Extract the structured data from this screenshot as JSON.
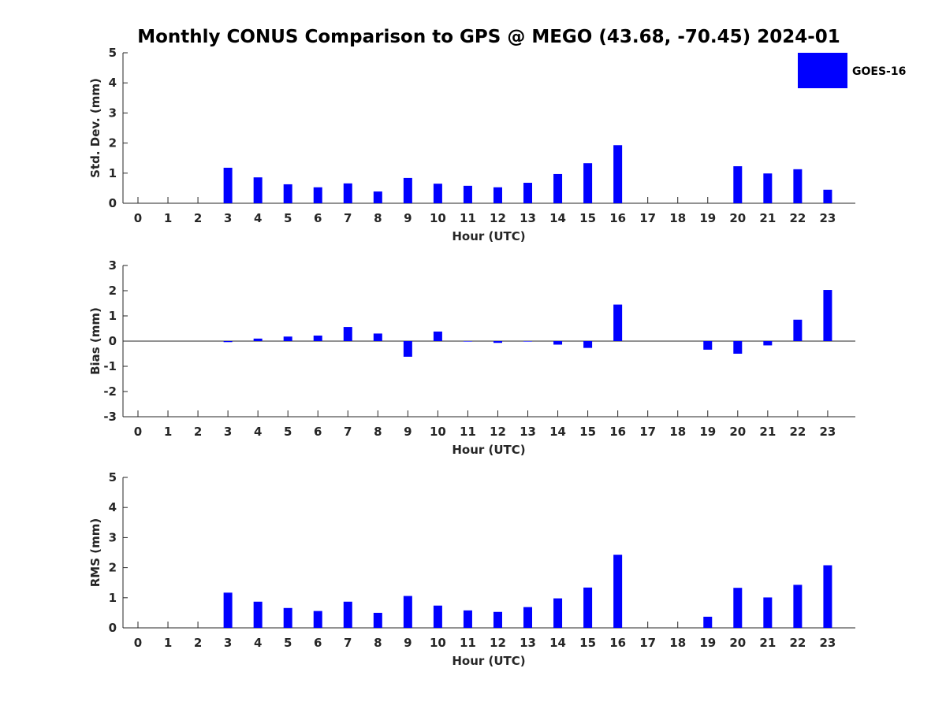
{
  "chart_data": [
    {
      "type": "bar",
      "title": "Monthly CONUS Comparison to GPS @ MEGO (43.68, -70.45) 2024-01",
      "xlabel": "Hour (UTC)",
      "ylabel": "Std. Dev. (mm)",
      "ylim": [
        0,
        5
      ],
      "yticks": [
        0,
        1,
        2,
        3,
        4,
        5
      ],
      "categories": [
        "0",
        "1",
        "2",
        "3",
        "4",
        "5",
        "6",
        "7",
        "8",
        "9",
        "10",
        "11",
        "12",
        "13",
        "14",
        "15",
        "16",
        "17",
        "18",
        "19",
        "20",
        "21",
        "22",
        "23"
      ],
      "series": [
        {
          "name": "GOES-16",
          "color": "#0000ff",
          "values": [
            null,
            null,
            null,
            1.18,
            0.86,
            0.63,
            0.53,
            0.66,
            0.39,
            0.84,
            0.65,
            0.58,
            0.53,
            0.68,
            0.97,
            1.33,
            1.93,
            null,
            null,
            null,
            1.23,
            0.99,
            1.13,
            0.45
          ]
        }
      ],
      "legend": {
        "position": "top-right",
        "entries": [
          "GOES-16"
        ]
      },
      "grid": false
    },
    {
      "type": "bar",
      "xlabel": "Hour (UTC)",
      "ylabel": "Bias (mm)",
      "ylim": [
        -3,
        3
      ],
      "yticks": [
        -3,
        -2,
        -1,
        0,
        1,
        2,
        3
      ],
      "zero_line": true,
      "categories": [
        "0",
        "1",
        "2",
        "3",
        "4",
        "5",
        "6",
        "7",
        "8",
        "9",
        "10",
        "11",
        "12",
        "13",
        "14",
        "15",
        "16",
        "17",
        "18",
        "19",
        "20",
        "21",
        "22",
        "23"
      ],
      "series": [
        {
          "name": "GOES-16",
          "color": "#0000ff",
          "values": [
            null,
            null,
            null,
            -0.04,
            0.1,
            0.18,
            0.22,
            0.56,
            0.3,
            -0.62,
            0.38,
            0.0,
            -0.07,
            0.0,
            -0.14,
            -0.27,
            1.45,
            null,
            null,
            -0.34,
            -0.5,
            -0.17,
            0.85,
            2.03
          ]
        }
      ],
      "grid": false
    },
    {
      "type": "bar",
      "xlabel": "Hour (UTC)",
      "ylabel": "RMS (mm)",
      "ylim": [
        0,
        5
      ],
      "yticks": [
        0,
        1,
        2,
        3,
        4,
        5
      ],
      "categories": [
        "0",
        "1",
        "2",
        "3",
        "4",
        "5",
        "6",
        "7",
        "8",
        "9",
        "10",
        "11",
        "12",
        "13",
        "14",
        "15",
        "16",
        "17",
        "18",
        "19",
        "20",
        "21",
        "22",
        "23"
      ],
      "series": [
        {
          "name": "GOES-16",
          "color": "#0000ff",
          "values": [
            null,
            null,
            null,
            1.17,
            0.87,
            0.66,
            0.56,
            0.87,
            0.5,
            1.06,
            0.74,
            0.58,
            0.53,
            0.69,
            0.98,
            1.34,
            2.43,
            null,
            null,
            0.37,
            1.33,
            1.01,
            1.43,
            2.08
          ]
        }
      ],
      "grid": false
    }
  ]
}
